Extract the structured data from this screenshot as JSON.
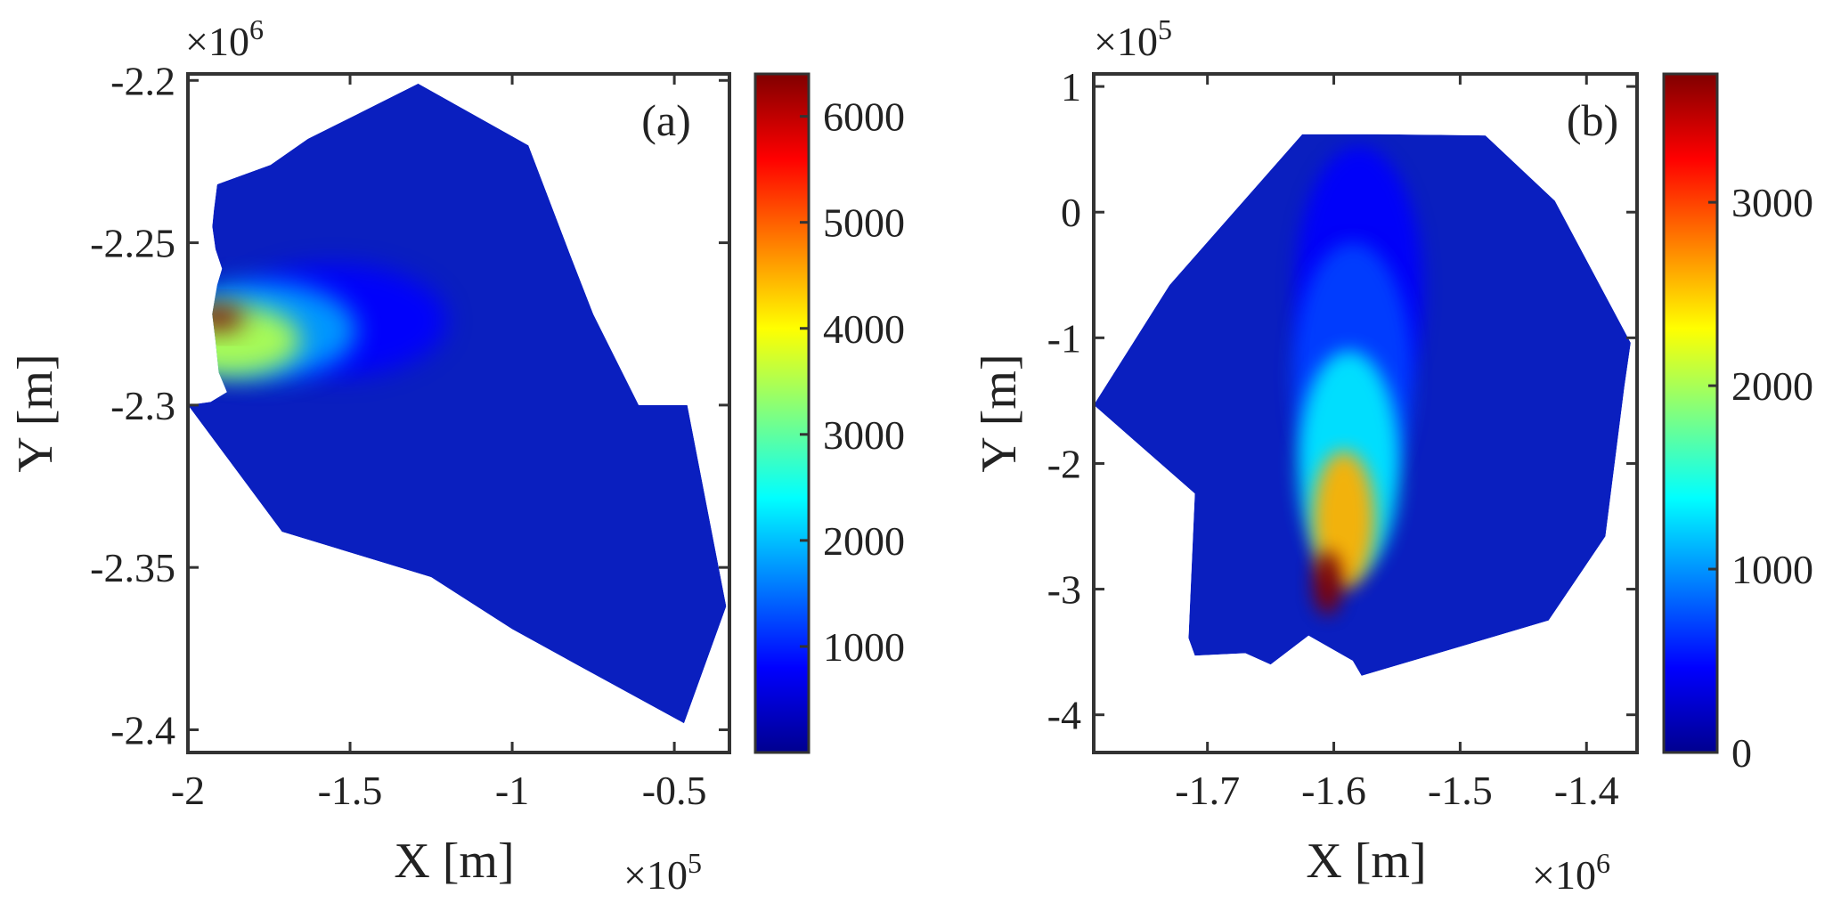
{
  "chart_data": [
    {
      "type": "heatmap",
      "panel_label": "(a)",
      "xlabel": "X [m]",
      "ylabel": "Y [m]",
      "x_multiplier": "×10",
      "x_multiplier_exp": "5",
      "y_multiplier": "×10",
      "y_multiplier_exp": "6",
      "xlim": [
        -2.0,
        -0.33
      ],
      "ylim": [
        -2.407,
        -2.198
      ],
      "xticks": [
        -2,
        -1.5,
        -1,
        -0.5
      ],
      "xtick_labels": [
        "-2",
        "-1.5",
        "-1",
        "-0.5"
      ],
      "yticks": [
        -2.2,
        -2.25,
        -2.3,
        -2.35,
        -2.4
      ],
      "ytick_labels": [
        "-2.2",
        "-2.25",
        "-2.3",
        "-2.35",
        "-2.4"
      ],
      "colorbar": {
        "colormap": "jet",
        "range": [
          0,
          6400
        ],
        "ticks": [
          1000,
          2000,
          3000,
          4000,
          5000,
          6000
        ],
        "tick_labels": [
          "1000",
          "2000",
          "3000",
          "4000",
          "5000",
          "6000"
        ]
      },
      "domain_outline": [
        [
          -2.0,
          -2.3
        ],
        [
          -1.93,
          -2.299
        ],
        [
          -1.88,
          -2.296
        ],
        [
          -1.905,
          -2.29
        ],
        [
          -1.915,
          -2.28
        ],
        [
          -1.925,
          -2.272
        ],
        [
          -1.91,
          -2.263
        ],
        [
          -1.895,
          -2.258
        ],
        [
          -1.915,
          -2.252
        ],
        [
          -1.925,
          -2.245
        ],
        [
          -1.92,
          -2.24
        ],
        [
          -1.91,
          -2.232
        ],
        [
          -1.745,
          -2.226
        ],
        [
          -1.63,
          -2.218
        ],
        [
          -1.47,
          -2.21
        ],
        [
          -1.29,
          -2.201
        ],
        [
          -0.95,
          -2.22
        ],
        [
          -0.82,
          -2.254
        ],
        [
          -0.75,
          -2.272
        ],
        [
          -0.61,
          -2.3
        ],
        [
          -0.46,
          -2.3
        ],
        [
          -0.34,
          -2.362
        ],
        [
          -0.47,
          -2.398
        ],
        [
          -0.8,
          -2.38
        ],
        [
          -1.0,
          -2.369
        ],
        [
          -1.25,
          -2.353
        ],
        [
          -1.71,
          -2.339
        ]
      ],
      "hotspots": [
        {
          "x": -1.905,
          "y": -2.273,
          "value": 6400
        },
        {
          "x": -1.87,
          "y": -2.28,
          "value": 3500
        },
        {
          "x": -1.78,
          "y": -2.277,
          "value": 1800
        },
        {
          "x": -1.55,
          "y": -2.274,
          "value": 800
        }
      ]
    },
    {
      "type": "heatmap",
      "panel_label": "(b)",
      "xlabel": "X [m]",
      "ylabel": "Y [m]",
      "x_multiplier": "×10",
      "x_multiplier_exp": "6",
      "y_multiplier": "×10",
      "y_multiplier_exp": "5",
      "xlim": [
        -1.79,
        -1.36
      ],
      "ylim": [
        -4.3,
        1.1
      ],
      "xticks": [
        -1.7,
        -1.6,
        -1.5,
        -1.4
      ],
      "xtick_labels": [
        "-1.7",
        "-1.6",
        "-1.5",
        "-1.4"
      ],
      "yticks": [
        1,
        0,
        -1,
        -2,
        -3,
        -4
      ],
      "ytick_labels": [
        "1",
        "0",
        "-1",
        "-2",
        "-3",
        "-4"
      ],
      "colorbar": {
        "colormap": "jet",
        "range": [
          0,
          3700
        ],
        "ticks": [
          0,
          1000,
          2000,
          3000
        ],
        "tick_labels": [
          "0",
          "1000",
          "2000",
          "3000"
        ]
      },
      "domain_outline": [
        [
          -1.79,
          -1.535
        ],
        [
          -1.73,
          -0.58
        ],
        [
          -1.625,
          0.62
        ],
        [
          -1.565,
          0.62
        ],
        [
          -1.48,
          0.61
        ],
        [
          -1.425,
          0.09
        ],
        [
          -1.365,
          -1.04
        ],
        [
          -1.37,
          -1.39
        ],
        [
          -1.385,
          -2.58
        ],
        [
          -1.43,
          -3.25
        ],
        [
          -1.578,
          -3.69
        ],
        [
          -1.585,
          -3.57
        ],
        [
          -1.62,
          -3.37
        ],
        [
          -1.65,
          -3.6
        ],
        [
          -1.67,
          -3.51
        ],
        [
          -1.71,
          -3.53
        ],
        [
          -1.715,
          -3.39
        ],
        [
          -1.71,
          -2.24
        ]
      ],
      "hotspots": [
        {
          "x": -1.605,
          "y": -2.95,
          "value": 3700
        },
        {
          "x": -1.592,
          "y": -2.45,
          "value": 2600
        },
        {
          "x": -1.588,
          "y": -2.0,
          "value": 1300
        },
        {
          "x": -1.585,
          "y": -1.3,
          "value": 700
        },
        {
          "x": -1.58,
          "y": -0.6,
          "value": 450
        }
      ]
    }
  ]
}
